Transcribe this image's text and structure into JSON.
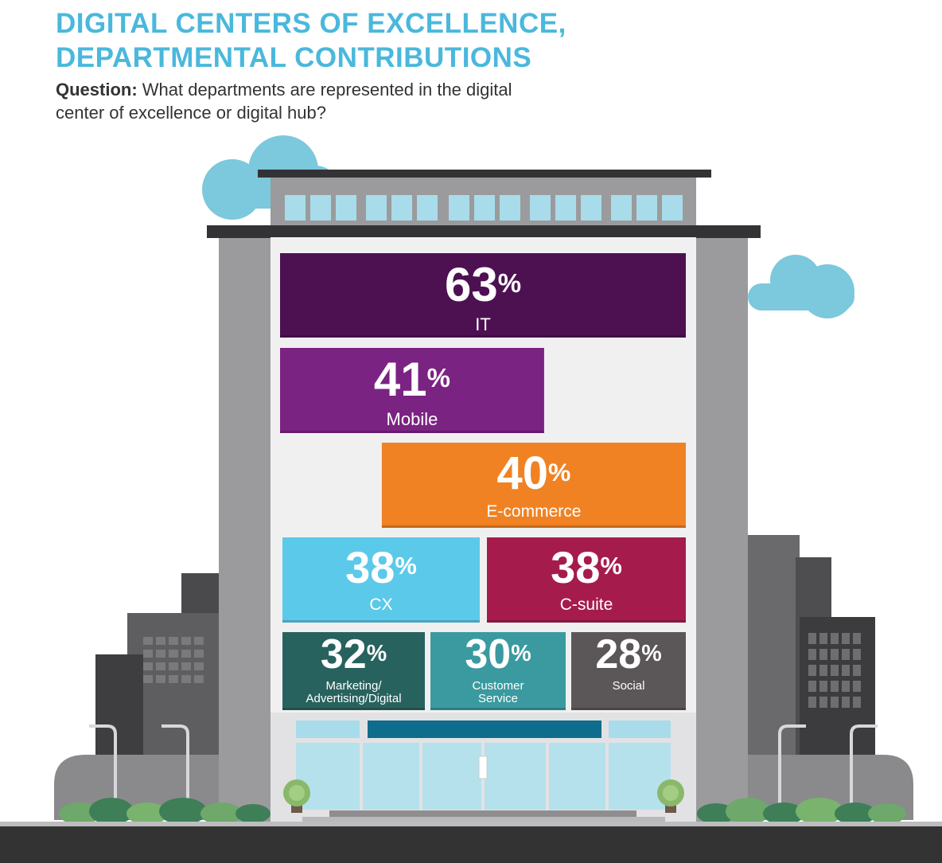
{
  "title": {
    "line1": "DIGITAL CENTERS OF EXCELLENCE,",
    "line2": "DEPARTMENTAL CONTRIBUTIONS"
  },
  "question": {
    "label": "Question:",
    "text": "What departments are represented in the digital center of excellence or digital hub?"
  },
  "colors": {
    "accent": "#4ab8dc",
    "it": "#4d1152",
    "mobile": "#7b2382",
    "ecommerce": "#f08224",
    "cx": "#5bc9ea",
    "csuite": "#a51c4c",
    "marketing": "#28625e",
    "customer_service": "#3a9aa0",
    "social": "#5b5657",
    "building": "#9b9b9d",
    "ground": "#333333"
  },
  "chart_data": {
    "type": "bar",
    "unit": "%",
    "categories": [
      "IT",
      "Mobile",
      "E-commerce",
      "CX",
      "C-suite",
      "Marketing/ Advertising/Digital",
      "Customer Service",
      "Social"
    ],
    "values": [
      63,
      41,
      40,
      38,
      38,
      32,
      30,
      28
    ]
  },
  "bars": [
    {
      "key": "it",
      "value": 63,
      "label": "IT",
      "color": "#4d1152"
    },
    {
      "key": "mobile",
      "value": 41,
      "label": "Mobile",
      "color": "#7b2382"
    },
    {
      "key": "ecommerce",
      "value": 40,
      "label": "E-commerce",
      "color": "#f08224"
    },
    {
      "key": "cx",
      "value": 38,
      "label": "CX",
      "color": "#5bc9ea"
    },
    {
      "key": "csuite",
      "value": 38,
      "label": "C-suite",
      "color": "#a51c4c"
    },
    {
      "key": "marketing",
      "value": 32,
      "label": "Marketing/ Advertising/Digital",
      "color": "#28625e"
    },
    {
      "key": "customer_service",
      "value": 30,
      "label": "Customer Service",
      "color": "#3a9aa0"
    },
    {
      "key": "social",
      "value": 28,
      "label": "Social",
      "color": "#5b5657"
    }
  ]
}
